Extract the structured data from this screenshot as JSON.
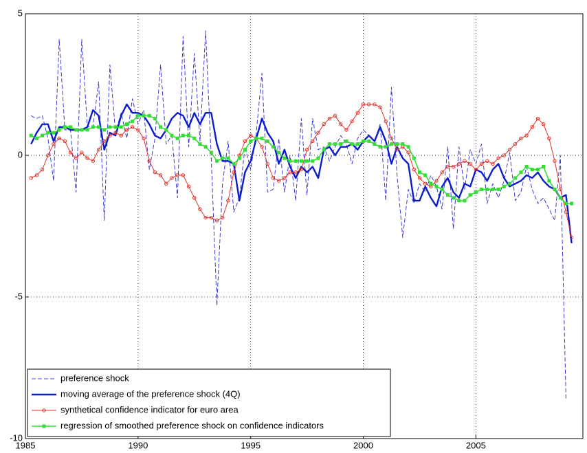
{
  "chart_data": {
    "type": "line",
    "x": [
      1985.25,
      1985.5,
      1985.75,
      1986,
      1986.25,
      1986.5,
      1986.75,
      1987,
      1987.25,
      1987.5,
      1987.75,
      1988,
      1988.25,
      1988.5,
      1988.75,
      1989,
      1989.25,
      1989.5,
      1989.75,
      1990,
      1990.25,
      1990.5,
      1990.75,
      1991,
      1991.25,
      1991.5,
      1991.75,
      1992,
      1992.25,
      1992.5,
      1992.75,
      1993,
      1993.25,
      1993.5,
      1993.75,
      1994,
      1994.25,
      1994.5,
      1994.75,
      1995,
      1995.25,
      1995.5,
      1995.75,
      1996,
      1996.25,
      1996.5,
      1996.75,
      1997,
      1997.25,
      1997.5,
      1997.75,
      1998,
      1998.25,
      1998.5,
      1998.75,
      1999,
      1999.25,
      1999.5,
      1999.75,
      2000,
      2000.25,
      2000.5,
      2000.75,
      2001,
      2001.25,
      2001.5,
      2001.75,
      2002,
      2002.25,
      2002.5,
      2002.75,
      2003,
      2003.25,
      2003.5,
      2003.75,
      2004,
      2004.25,
      2004.5,
      2004.75,
      2005,
      2005.25,
      2005.5,
      2005.75,
      2006,
      2006.25,
      2006.5,
      2006.75,
      2007,
      2007.25,
      2007.5,
      2007.75,
      2008,
      2008.25,
      2008.5,
      2008.75,
      2009,
      2009.25
    ],
    "series": [
      {
        "name": "preference shock",
        "color": "#3a3ad0",
        "dash": true,
        "width": 1,
        "values": [
          1.4,
          1.3,
          1.4,
          0.6,
          -0.9,
          4.1,
          0.9,
          0.9,
          -1.3,
          4.1,
          1.0,
          1.0,
          2.6,
          -2.3,
          3.2,
          0.8,
          1.5,
          0.6,
          2.0,
          1.1,
          1.6,
          -0.5,
          0.6,
          3.2,
          0.4,
          0.7,
          -1.5,
          4.2,
          0.3,
          3.6,
          0.5,
          4.4,
          -0.1,
          -5.3,
          -1.0,
          0.5,
          -2.0,
          -1.5,
          0.3,
          -0.5,
          0.8,
          2.9,
          -1.3,
          -1.2,
          0.6,
          -1.3,
          0.0,
          -1.6,
          1.3,
          -1.4,
          1.3,
          0.2,
          0.3,
          -0.2,
          0.3,
          0.7,
          0.4,
          -0.3,
          0.6,
          0.9,
          0.7,
          0.5,
          1.1,
          -1.6,
          2.4,
          -0.7,
          -2.9,
          -1.2,
          -1.7,
          -1.0,
          -1.3,
          -0.7,
          -1.1,
          -1.9,
          0.3,
          -2.6,
          0.3,
          -1.2,
          0.2,
          -0.3,
          0.4,
          -1.7,
          -1.0,
          -1.5,
          -0.9,
          0.1,
          -1.6,
          -1.3,
          -0.4,
          -1.2,
          -1.7,
          -1.5,
          -1.9,
          -2.3,
          0.0,
          -8.6,
          null
        ]
      },
      {
        "name": "moving average of the preference shock (4Q)",
        "color": "#0a1ccc",
        "width": 2.4,
        "values": [
          0.4,
          0.8,
          1.1,
          1.1,
          0.5,
          1.0,
          1.0,
          0.9,
          0.9,
          0.9,
          1.0,
          1.6,
          1.4,
          0.2,
          0.8,
          0.7,
          1.4,
          1.8,
          1.5,
          1.5,
          1.4,
          1.1,
          0.7,
          0.6,
          0.9,
          1.3,
          1.5,
          1.4,
          1.0,
          1.5,
          1.1,
          1.5,
          1.5,
          0.4,
          -0.2,
          -0.2,
          -0.3,
          -1.6,
          -0.6,
          -0.2,
          0.6,
          1.3,
          0.8,
          0.5,
          -0.3,
          0.2,
          -0.4,
          -0.8,
          -0.4,
          -0.6,
          -0.4,
          -0.8,
          0.2,
          0.3,
          0.0,
          0.3,
          0.3,
          0.4,
          0.2,
          0.5,
          0.7,
          0.5,
          1.0,
          0.5,
          -0.3,
          0.3,
          -0.1,
          -0.3,
          -1.6,
          -1.6,
          -1.1,
          -1.5,
          -1.8,
          -1.1,
          -0.8,
          -1.3,
          -1.5,
          -1.0,
          -1.1,
          -0.5,
          -0.6,
          -0.9,
          -0.5,
          -0.3,
          -0.8,
          -1.1,
          -1.0,
          -0.9,
          -0.7,
          -0.8,
          -0.6,
          -0.9,
          -1.1,
          -1.2,
          -1.5,
          -1.4,
          -3.1
        ]
      },
      {
        "name": "synthetical confidence indicator for euro area",
        "color": "#e2312a",
        "marker": "circle",
        "width": 1,
        "values": [
          -0.8,
          -0.7,
          -0.5,
          0.0,
          0.4,
          0.6,
          0.5,
          0.1,
          -0.1,
          0.1,
          -0.1,
          -0.2,
          0.2,
          0.5,
          0.7,
          0.8,
          0.7,
          0.9,
          1.0,
          0.9,
          0.6,
          -0.2,
          -0.6,
          -0.7,
          -1.0,
          -0.8,
          -0.7,
          -0.7,
          -1.1,
          -1.5,
          -1.9,
          -2.2,
          -2.2,
          -2.3,
          -2.2,
          -1.6,
          -0.6,
          0.0,
          0.5,
          0.7,
          0.6,
          0.3,
          -0.3,
          -0.8,
          -0.9,
          -0.8,
          -0.6,
          -0.6,
          -0.5,
          0.2,
          0.5,
          0.8,
          1.1,
          1.3,
          1.4,
          1.1,
          0.9,
          1.2,
          1.5,
          1.8,
          1.8,
          1.8,
          1.7,
          1.2,
          0.6,
          0.2,
          0.3,
          0.1,
          -0.5,
          -0.8,
          -1.0,
          -1.1,
          -0.9,
          -0.6,
          -0.4,
          -0.4,
          -0.3,
          -0.2,
          -0.3,
          -0.5,
          -0.3,
          -0.2,
          -0.3,
          -0.1,
          0.0,
          0.2,
          0.4,
          0.6,
          0.7,
          1.0,
          1.3,
          1.1,
          0.6,
          -0.2,
          -1.2,
          -2.0,
          -2.9
        ]
      },
      {
        "name": "regression of smoothed preference shock on confidence indicators",
        "color": "#33dd33",
        "marker": "square",
        "width": 1.6,
        "values": [
          0.7,
          0.6,
          0.7,
          0.8,
          0.8,
          0.9,
          1.0,
          1.0,
          0.9,
          0.9,
          0.9,
          1.0,
          1.0,
          0.9,
          1.0,
          1.0,
          1.0,
          1.1,
          1.2,
          1.4,
          1.4,
          1.4,
          1.3,
          1.0,
          0.9,
          0.7,
          0.6,
          0.7,
          0.7,
          0.6,
          0.4,
          0.3,
          0.1,
          -0.2,
          -0.1,
          -0.1,
          -0.3,
          -0.1,
          0.2,
          0.5,
          0.6,
          0.6,
          0.5,
          0.3,
          0.1,
          -0.1,
          -0.2,
          -0.2,
          -0.2,
          -0.2,
          -0.2,
          -0.1,
          0.2,
          0.4,
          0.4,
          0.4,
          0.5,
          0.4,
          0.4,
          0.5,
          0.5,
          0.4,
          0.3,
          0.3,
          0.4,
          0.4,
          0.4,
          0.3,
          -0.1,
          -0.6,
          -0.7,
          -1.0,
          -1.1,
          -1.2,
          -1.4,
          -1.5,
          -1.6,
          -1.6,
          -1.4,
          -1.3,
          -1.2,
          -1.2,
          -1.2,
          -1.2,
          -1.1,
          -1.0,
          -0.8,
          -0.6,
          -0.4,
          -0.5,
          -0.5,
          -0.4,
          -0.9,
          -1.2,
          -1.5,
          -1.7,
          -1.7
        ]
      }
    ],
    "xlim": [
      1985,
      2009.75
    ],
    "ylim": [
      -10,
      5
    ],
    "xticks": [
      1985,
      1990,
      1995,
      2000,
      2005
    ],
    "yticks": [
      -10,
      -5,
      0,
      5
    ],
    "grid": true,
    "legend": "lower left"
  }
}
